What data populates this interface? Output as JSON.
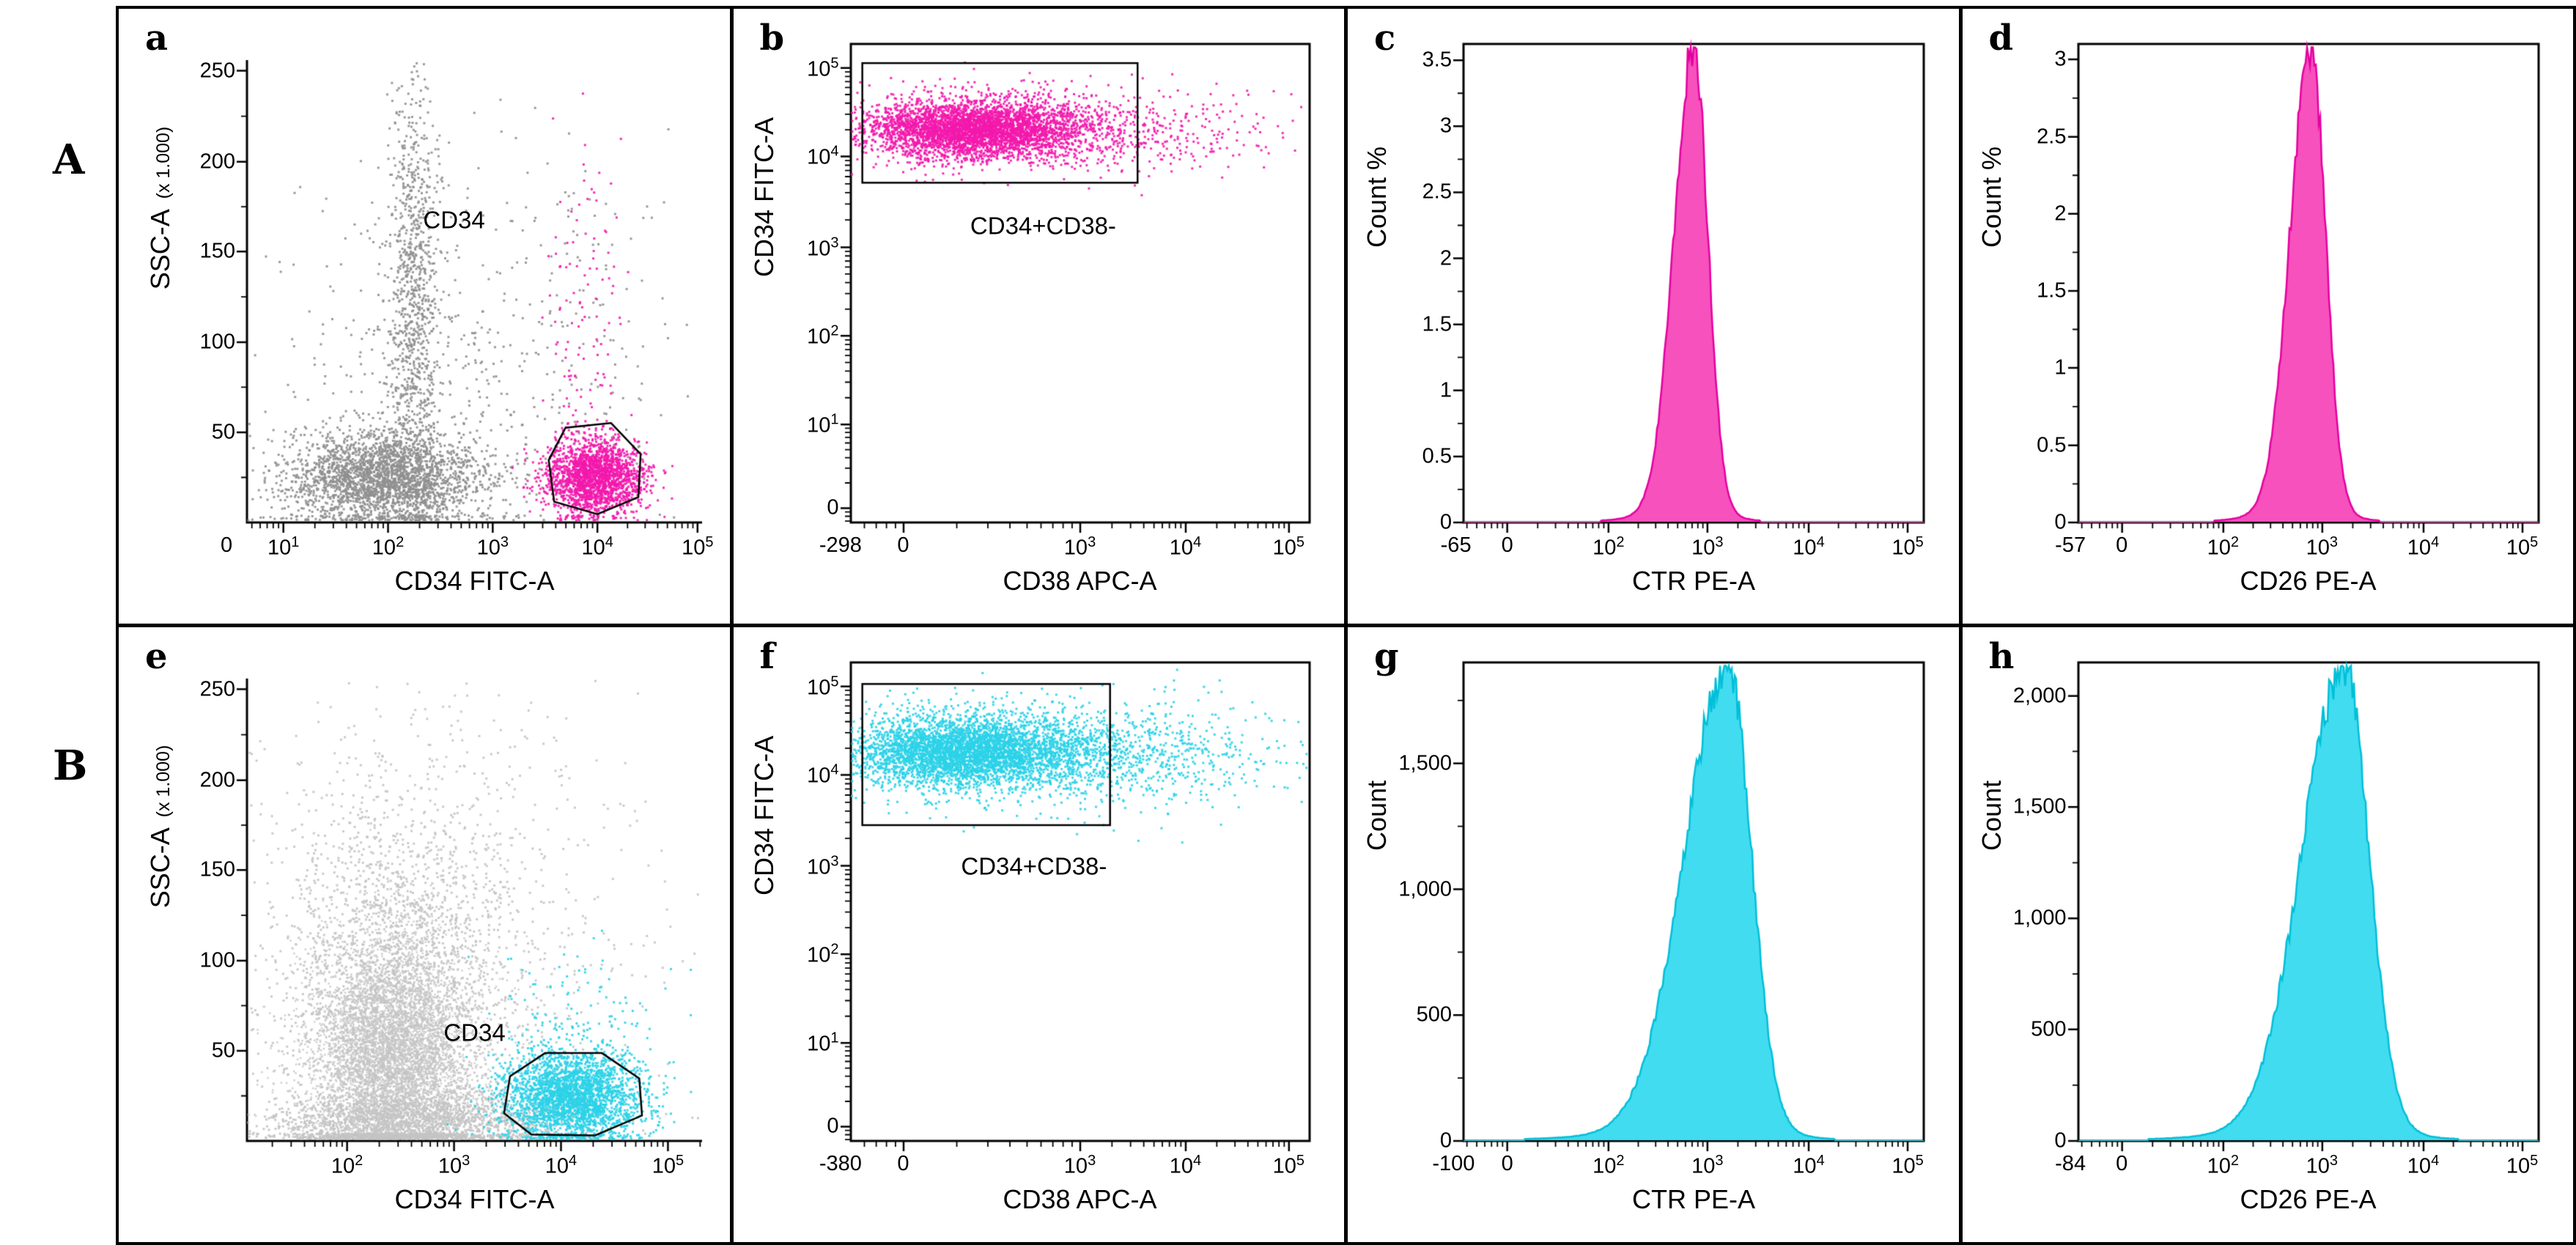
{
  "figure": {
    "background": "#ffffff",
    "border_color": "#000000",
    "row_labels": [
      {
        "label": "A"
      },
      {
        "label": "B"
      }
    ]
  },
  "palette": {
    "magenta_fill": "#F651BD",
    "magenta_dot": "#F318AC",
    "magenta_stroke": "#E500A0",
    "cyan_fill": "#41DCF0",
    "cyan_dot": "#2BD2E8",
    "cyan_stroke": "#00BFD8",
    "gray_dark": "#8F8F8F",
    "gray_light": "#C4C4C4",
    "axis": "#000000"
  },
  "chart_data": [
    {
      "id": "a",
      "letter": "a",
      "type": "scatter",
      "frame": "axes",
      "seed": 11,
      "x_axis": {
        "title": "CD34 FITC-A",
        "log_minors": true,
        "ticks": [
          {
            "f": -0.045,
            "label": "0",
            "tick": false
          },
          {
            "f": 0.08,
            "base": "10",
            "exp": "1"
          },
          {
            "f": 0.31,
            "base": "10",
            "exp": "2"
          },
          {
            "f": 0.54,
            "base": "10",
            "exp": "3"
          },
          {
            "f": 0.77,
            "base": "10",
            "exp": "4"
          },
          {
            "f": 0.99,
            "base": "10",
            "exp": "5"
          }
        ]
      },
      "y_axis": {
        "title": "SSC-A",
        "title_suffix": "(x 1.000)",
        "minor_mid": true,
        "ticks": [
          {
            "f": 0.195,
            "label": "50"
          },
          {
            "f": 0.39,
            "label": "100"
          },
          {
            "f": 0.586,
            "label": "150"
          },
          {
            "f": 0.78,
            "label": "200"
          },
          {
            "f": 0.977,
            "label": "250"
          }
        ]
      },
      "gate": {
        "shape": "polygon",
        "label": "CD34",
        "label_pos": [
          0.455,
          0.655
        ],
        "points": [
          [
            0.675,
            0.045
          ],
          [
            0.663,
            0.135
          ],
          [
            0.7,
            0.205
          ],
          [
            0.8,
            0.215
          ],
          [
            0.865,
            0.148
          ],
          [
            0.86,
            0.055
          ],
          [
            0.77,
            0.018
          ]
        ]
      },
      "populations": [
        {
          "color": "gray_dark",
          "n": 2600,
          "cx": 0.3,
          "cy": 0.095,
          "sx": 0.105,
          "sy": 0.05
        },
        {
          "color": "gray_dark",
          "n": 1000,
          "cx": 0.365,
          "cy": 0.46,
          "sx": 0.028,
          "sy": 0.27
        },
        {
          "color": "gray_dark",
          "n": 450,
          "cx": 0.42,
          "cy": 0.32,
          "sx": 0.2,
          "sy": 0.22
        },
        {
          "color": "gray_dark",
          "n": 120,
          "cx": 0.72,
          "cy": 0.38,
          "sx": 0.13,
          "sy": 0.25
        },
        {
          "color": "magenta_dot",
          "n": 2000,
          "cx": 0.765,
          "cy": 0.1,
          "sx": 0.052,
          "sy": 0.042
        },
        {
          "color": "magenta_dot",
          "n": 130,
          "cx": 0.74,
          "cy": 0.42,
          "sx": 0.05,
          "sy": 0.22
        }
      ]
    },
    {
      "id": "b",
      "letter": "b",
      "type": "scatter",
      "frame": "box",
      "seed": 12,
      "x_axis": {
        "title": "CD38 APC-A",
        "neg_label": "-298",
        "log_minors": true,
        "ticks": [
          {
            "f": 0.115,
            "label": "0"
          },
          {
            "f": 0.5,
            "base": "10",
            "exp": "3"
          },
          {
            "f": 0.73,
            "base": "10",
            "exp": "4"
          },
          {
            "f": 0.955,
            "base": "10",
            "exp": "5"
          }
        ]
      },
      "y_axis": {
        "title": "CD34 FITC-A",
        "log_minors": true,
        "ticks": [
          {
            "f": 0.03,
            "label": "0"
          },
          {
            "f": 0.205,
            "base": "10",
            "exp": "1"
          },
          {
            "f": 0.39,
            "base": "10",
            "exp": "2"
          },
          {
            "f": 0.575,
            "base": "10",
            "exp": "3"
          },
          {
            "f": 0.765,
            "base": "10",
            "exp": "4"
          },
          {
            "f": 0.95,
            "base": "10",
            "exp": "5"
          }
        ]
      },
      "gate": {
        "shape": "rect",
        "rect": [
          0.025,
          0.71,
          0.625,
          0.96
        ],
        "label": "CD34+CD38-",
        "label_pos": [
          0.42,
          0.62
        ]
      },
      "populations": [
        {
          "color": "magenta_dot",
          "n": 3000,
          "cx": 0.26,
          "cy": 0.822,
          "sx": 0.115,
          "sy": 0.028
        },
        {
          "color": "magenta_dot",
          "n": 1300,
          "cx": 0.32,
          "cy": 0.822,
          "sx": 0.165,
          "sy": 0.042
        },
        {
          "color": "magenta_dot",
          "n": 260,
          "cx": 0.63,
          "cy": 0.815,
          "sx": 0.17,
          "sy": 0.045
        }
      ]
    },
    {
      "id": "c",
      "letter": "c",
      "type": "hist",
      "frame": "box",
      "seed": 13,
      "fill": "magenta_fill",
      "stroke": "magenta_stroke",
      "x_axis": {
        "title": "CTR PE-A",
        "neg_label": "-65",
        "log_minors": true,
        "ticks": [
          {
            "f": 0.095,
            "label": "0"
          },
          {
            "f": 0.315,
            "base": "10",
            "exp": "2"
          },
          {
            "f": 0.53,
            "base": "10",
            "exp": "3"
          },
          {
            "f": 0.75,
            "base": "10",
            "exp": "4"
          },
          {
            "f": 0.965,
            "base": "10",
            "exp": "5"
          }
        ]
      },
      "y_axis": {
        "title": "Count %",
        "minor_mid": true,
        "ticks": [
          {
            "f": 0.0,
            "label": "0"
          },
          {
            "f": 0.138,
            "label": "0.5"
          },
          {
            "f": 0.276,
            "label": "1"
          },
          {
            "f": 0.414,
            "label": "1.5"
          },
          {
            "f": 0.552,
            "label": "2"
          },
          {
            "f": 0.69,
            "label": "2.5"
          },
          {
            "f": 0.828,
            "label": "3"
          },
          {
            "f": 0.966,
            "label": "3.5"
          }
        ]
      },
      "curve": {
        "center": 0.5,
        "sigma_left": 0.043,
        "sigma_right": 0.031,
        "peak": 0.972
      }
    },
    {
      "id": "d",
      "letter": "d",
      "type": "hist",
      "frame": "box",
      "seed": 14,
      "fill": "magenta_fill",
      "stroke": "magenta_stroke",
      "x_axis": {
        "title": "CD26 PE-A",
        "neg_label": "-57",
        "log_minors": true,
        "ticks": [
          {
            "f": 0.095,
            "label": "0"
          },
          {
            "f": 0.315,
            "base": "10",
            "exp": "2"
          },
          {
            "f": 0.53,
            "base": "10",
            "exp": "3"
          },
          {
            "f": 0.75,
            "base": "10",
            "exp": "4"
          },
          {
            "f": 0.965,
            "base": "10",
            "exp": "5"
          }
        ]
      },
      "y_axis": {
        "title": "Count %",
        "minor_mid": true,
        "ticks": [
          {
            "f": 0.0,
            "label": "0"
          },
          {
            "f": 0.161,
            "label": "0.5"
          },
          {
            "f": 0.323,
            "label": "1"
          },
          {
            "f": 0.484,
            "label": "1.5"
          },
          {
            "f": 0.645,
            "label": "2"
          },
          {
            "f": 0.806,
            "label": "2.5"
          },
          {
            "f": 0.968,
            "label": "3"
          }
        ]
      },
      "curve": {
        "center": 0.505,
        "sigma_left": 0.045,
        "sigma_right": 0.032,
        "peak": 0.972
      }
    },
    {
      "id": "e",
      "letter": "e",
      "type": "scatter",
      "frame": "axes",
      "seed": 15,
      "x_axis": {
        "title": "CD34 FITC-A",
        "log_minors": true,
        "ticks": [
          {
            "f": 0.22,
            "base": "10",
            "exp": "2"
          },
          {
            "f": 0.455,
            "base": "10",
            "exp": "3"
          },
          {
            "f": 0.69,
            "base": "10",
            "exp": "4"
          },
          {
            "f": 0.925,
            "base": "10",
            "exp": "5"
          }
        ]
      },
      "y_axis": {
        "title": "SSC-A",
        "title_suffix": "(x 1.000)",
        "minor_mid": true,
        "ticks": [
          {
            "f": 0.195,
            "label": "50"
          },
          {
            "f": 0.39,
            "label": "100"
          },
          {
            "f": 0.586,
            "label": "150"
          },
          {
            "f": 0.78,
            "label": "200"
          },
          {
            "f": 0.977,
            "label": "250"
          }
        ]
      },
      "gate": {
        "shape": "polygon",
        "label": "CD34",
        "label_pos": [
          0.5,
          0.235
        ],
        "points": [
          [
            0.565,
            0.06
          ],
          [
            0.578,
            0.14
          ],
          [
            0.655,
            0.19
          ],
          [
            0.78,
            0.19
          ],
          [
            0.862,
            0.135
          ],
          [
            0.868,
            0.055
          ],
          [
            0.765,
            0.012
          ],
          [
            0.625,
            0.014
          ]
        ]
      },
      "populations": [
        {
          "color": "gray_light",
          "n": 6000,
          "cx": 0.315,
          "cy": 0.17,
          "sx": 0.085,
          "sy": 0.125
        },
        {
          "color": "gray_light",
          "n": 3000,
          "cx": 0.33,
          "cy": 0.3,
          "sx": 0.14,
          "sy": 0.235
        },
        {
          "color": "gray_light",
          "n": 1500,
          "cx": 0.38,
          "cy": 0.045,
          "sx": 0.18,
          "sy": 0.028
        },
        {
          "color": "gray_light",
          "n": 500,
          "cx": 0.5,
          "cy": 0.52,
          "sx": 0.24,
          "sy": 0.3
        },
        {
          "color": "cyan_dot",
          "n": 2600,
          "cx": 0.715,
          "cy": 0.095,
          "sx": 0.075,
          "sy": 0.05
        },
        {
          "color": "cyan_dot",
          "n": 150,
          "cx": 0.72,
          "cy": 0.24,
          "sx": 0.09,
          "sy": 0.1
        }
      ]
    },
    {
      "id": "f",
      "letter": "f",
      "type": "scatter",
      "frame": "box",
      "seed": 16,
      "x_axis": {
        "title": "CD38 APC-A",
        "neg_label": "-380",
        "log_minors": true,
        "ticks": [
          {
            "f": 0.115,
            "label": "0"
          },
          {
            "f": 0.5,
            "base": "10",
            "exp": "3"
          },
          {
            "f": 0.73,
            "base": "10",
            "exp": "4"
          },
          {
            "f": 0.955,
            "base": "10",
            "exp": "5"
          }
        ]
      },
      "y_axis": {
        "title": "CD34 FITC-A",
        "log_minors": true,
        "ticks": [
          {
            "f": 0.03,
            "label": "0"
          },
          {
            "f": 0.205,
            "base": "10",
            "exp": "1"
          },
          {
            "f": 0.39,
            "base": "10",
            "exp": "2"
          },
          {
            "f": 0.575,
            "base": "10",
            "exp": "3"
          },
          {
            "f": 0.765,
            "base": "10",
            "exp": "4"
          },
          {
            "f": 0.95,
            "base": "10",
            "exp": "5"
          }
        ]
      },
      "gate": {
        "shape": "rect",
        "rect": [
          0.025,
          0.66,
          0.565,
          0.955
        ],
        "label": "CD34+CD38-",
        "label_pos": [
          0.4,
          0.575
        ]
      },
      "populations": [
        {
          "color": "cyan_dot",
          "n": 3200,
          "cx": 0.25,
          "cy": 0.815,
          "sx": 0.125,
          "sy": 0.035
        },
        {
          "color": "cyan_dot",
          "n": 1400,
          "cx": 0.32,
          "cy": 0.812,
          "sx": 0.18,
          "sy": 0.05
        },
        {
          "color": "cyan_dot",
          "n": 550,
          "cx": 0.62,
          "cy": 0.8,
          "sx": 0.18,
          "sy": 0.055
        }
      ]
    },
    {
      "id": "g",
      "letter": "g",
      "type": "hist",
      "frame": "box",
      "seed": 17,
      "fill": "cyan_fill",
      "stroke": "cyan_stroke",
      "x_axis": {
        "title": "CTR PE-A",
        "neg_label": "-100",
        "log_minors": true,
        "ticks": [
          {
            "f": 0.095,
            "label": "0"
          },
          {
            "f": 0.315,
            "base": "10",
            "exp": "2"
          },
          {
            "f": 0.53,
            "base": "10",
            "exp": "3"
          },
          {
            "f": 0.75,
            "base": "10",
            "exp": "4"
          },
          {
            "f": 0.965,
            "base": "10",
            "exp": "5"
          }
        ]
      },
      "y_axis": {
        "title": "Count",
        "minor_mid": true,
        "ticks": [
          {
            "f": 0.0,
            "label": "0"
          },
          {
            "f": 0.263,
            "label": "500"
          },
          {
            "f": 0.526,
            "label": "1,000"
          },
          {
            "f": 0.789,
            "label": "1,500"
          }
        ]
      },
      "curve": {
        "center": 0.575,
        "sigma_left": 0.095,
        "sigma_right": 0.05,
        "peak": 0.972
      }
    },
    {
      "id": "h",
      "letter": "h",
      "type": "hist",
      "frame": "box",
      "seed": 18,
      "fill": "cyan_fill",
      "stroke": "cyan_stroke",
      "x_axis": {
        "title": "CD26 PE-A",
        "neg_label": "-84",
        "log_minors": true,
        "ticks": [
          {
            "f": 0.095,
            "label": "0"
          },
          {
            "f": 0.315,
            "base": "10",
            "exp": "2"
          },
          {
            "f": 0.53,
            "base": "10",
            "exp": "3"
          },
          {
            "f": 0.75,
            "base": "10",
            "exp": "4"
          },
          {
            "f": 0.965,
            "base": "10",
            "exp": "5"
          }
        ]
      },
      "y_axis": {
        "title": "Count",
        "minor_mid": true,
        "ticks": [
          {
            "f": 0.0,
            "label": "0"
          },
          {
            "f": 0.233,
            "label": "500"
          },
          {
            "f": 0.465,
            "label": "1,000"
          },
          {
            "f": 0.698,
            "label": "1,500"
          },
          {
            "f": 0.93,
            "label": "2,000"
          }
        ]
      },
      "curve": {
        "center": 0.578,
        "sigma_left": 0.092,
        "sigma_right": 0.053,
        "peak": 0.972
      }
    }
  ]
}
